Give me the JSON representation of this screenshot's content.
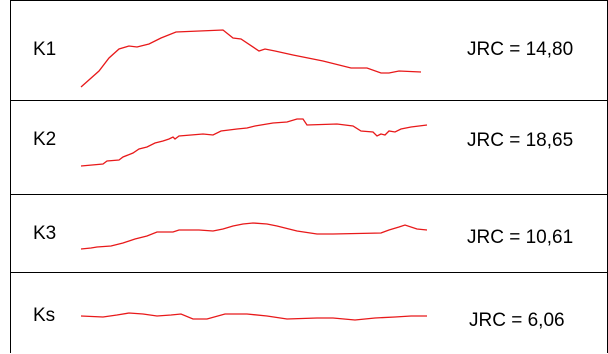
{
  "rows": [
    {
      "label": "K1",
      "jrc": "JRC = 14,80"
    },
    {
      "label": "K2",
      "jrc": "JRC = 18,65"
    },
    {
      "label": "K3",
      "jrc": "JRC = 10,61"
    },
    {
      "label": "Ks",
      "jrc": "JRC = 6,06"
    }
  ],
  "colors": {
    "profile_line": "#e8191a",
    "border": "#000000"
  }
}
